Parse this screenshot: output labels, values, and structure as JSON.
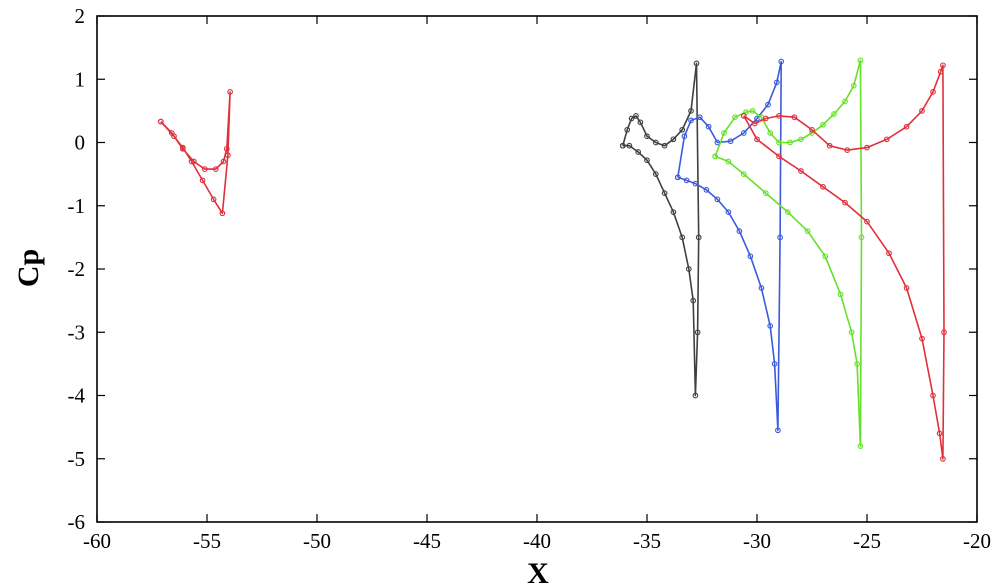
{
  "chart_data": {
    "type": "line",
    "xlabel": "X",
    "ylabel": "Cp",
    "xlim": [
      -60,
      -20
    ],
    "ylim": [
      -6,
      2
    ],
    "xticks": [
      -60,
      -55,
      -50,
      -45,
      -40,
      -35,
      -30,
      -25,
      -20
    ],
    "yticks": [
      2,
      1,
      0,
      -1,
      -2,
      -3,
      -4,
      -5,
      -6
    ],
    "grid": false,
    "series": [
      {
        "color": "#e0303a",
        "x": [
          -57.1,
          -56.6,
          -56.1,
          -55.6,
          -55.1,
          -54.6,
          -54.25,
          -54.1,
          -53.95,
          -54.05,
          -54.3,
          -54.7,
          -55.2,
          -55.7,
          -56.1,
          -56.5,
          -57.1
        ],
        "y": [
          0.33,
          0.15,
          -0.1,
          -0.3,
          -0.42,
          -0.42,
          -0.3,
          -0.1,
          0.8,
          -0.2,
          -1.12,
          -0.9,
          -0.6,
          -0.3,
          -0.08,
          0.1,
          0.33
        ]
      },
      {
        "color": "#404040",
        "x": [
          -36.1,
          -35.9,
          -35.7,
          -35.5,
          -35.3,
          -35.0,
          -34.6,
          -34.2,
          -33.8,
          -33.4,
          -33.0,
          -32.75,
          -32.65,
          -32.7,
          -32.8,
          -32.9,
          -33.1,
          -33.4,
          -33.8,
          -34.2,
          -34.6,
          -35.0,
          -35.4,
          -35.8,
          -36.1
        ],
        "y": [
          -0.05,
          0.2,
          0.38,
          0.42,
          0.32,
          0.1,
          0.0,
          -0.05,
          0.05,
          0.2,
          0.5,
          1.25,
          -1.5,
          -3.0,
          -4.0,
          -2.5,
          -2.0,
          -1.5,
          -1.1,
          -0.8,
          -0.5,
          -0.28,
          -0.15,
          -0.05,
          -0.05
        ]
      },
      {
        "color": "#3b5bdb",
        "x": [
          -33.6,
          -33.3,
          -33.0,
          -32.6,
          -32.2,
          -31.8,
          -31.2,
          -30.6,
          -30.0,
          -29.5,
          -29.1,
          -28.9,
          -28.95,
          -29.05,
          -29.2,
          -29.4,
          -29.8,
          -30.3,
          -30.8,
          -31.3,
          -31.8,
          -32.3,
          -32.8,
          -33.2,
          -33.6
        ],
        "y": [
          -0.55,
          0.1,
          0.35,
          0.4,
          0.25,
          0.0,
          0.02,
          0.15,
          0.38,
          0.6,
          0.95,
          1.28,
          -1.5,
          -4.55,
          -3.5,
          -2.9,
          -2.3,
          -1.8,
          -1.4,
          -1.1,
          -0.9,
          -0.75,
          -0.65,
          -0.6,
          -0.55
        ]
      },
      {
        "color": "#66e02a",
        "x": [
          -31.9,
          -31.5,
          -31.0,
          -30.5,
          -30.2,
          -29.8,
          -29.4,
          -29.0,
          -28.5,
          -28.0,
          -27.5,
          -27.0,
          -26.5,
          -26.0,
          -25.6,
          -25.3,
          -25.25,
          -25.3,
          -25.45,
          -25.7,
          -26.2,
          -26.9,
          -27.7,
          -28.6,
          -29.6,
          -30.6,
          -31.3,
          -31.9
        ],
        "y": [
          -0.22,
          0.15,
          0.4,
          0.48,
          0.5,
          0.4,
          0.15,
          0.0,
          0.0,
          0.05,
          0.15,
          0.28,
          0.45,
          0.65,
          0.9,
          1.3,
          -1.5,
          -4.8,
          -3.5,
          -3.0,
          -2.4,
          -1.8,
          -1.4,
          -1.1,
          -0.8,
          -0.5,
          -0.3,
          -0.22
        ]
      },
      {
        "color": "#e0303a",
        "x": [
          -30.6,
          -30.1,
          -29.6,
          -29.0,
          -28.3,
          -27.5,
          -26.7,
          -25.9,
          -25.0,
          -24.1,
          -23.2,
          -22.5,
          -22.0,
          -21.65,
          -21.55,
          -21.5,
          -21.55,
          -21.7,
          -22.0,
          -22.5,
          -23.2,
          -24.0,
          -25.0,
          -26.0,
          -27.0,
          -28.0,
          -29.0,
          -30.0,
          -30.6
        ],
        "y": [
          0.42,
          0.3,
          0.38,
          0.42,
          0.4,
          0.2,
          -0.05,
          -0.12,
          -0.08,
          0.05,
          0.25,
          0.5,
          0.8,
          1.12,
          1.22,
          -3.0,
          -5.0,
          -4.6,
          -4.0,
          -3.1,
          -2.3,
          -1.75,
          -1.25,
          -0.95,
          -0.7,
          -0.45,
          -0.22,
          0.05,
          0.42
        ]
      }
    ]
  }
}
